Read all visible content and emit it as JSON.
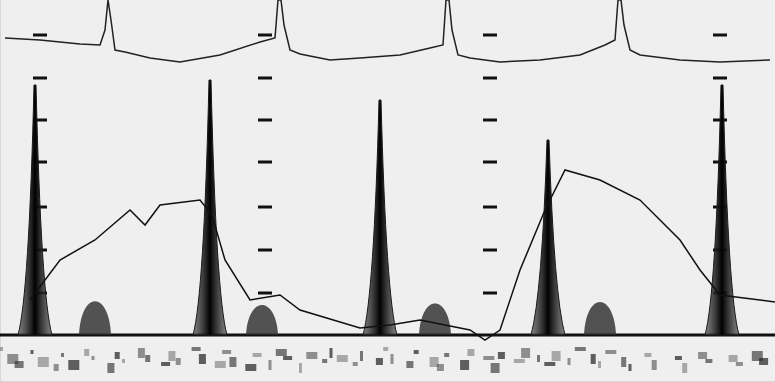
{
  "chart_data": {
    "type": "line",
    "tick_labels": false,
    "grid": true,
    "xlim": [
      0,
      775
    ],
    "ylim": [
      -47,
      335
    ],
    "xticks": [
      40,
      265,
      490,
      720
    ],
    "yticks": [
      0,
      42,
      85,
      128,
      173,
      215,
      257,
      300
    ],
    "series": [
      {
        "type": "spike",
        "color": "#1a1a1a",
        "x": [
          35,
          210,
          380,
          548,
          722
        ],
        "values": [
          250,
          255,
          235,
          195,
          250
        ]
      },
      {
        "type": "hump",
        "color": "#2a2a2a",
        "x": [
          95,
          262,
          435,
          600
        ],
        "values": [
          45,
          40,
          42,
          44
        ]
      },
      {
        "type": "line",
        "color": "#111111",
        "line_style": "solid",
        "x": [
          30,
          60,
          95,
          130,
          145,
          160,
          200,
          212,
          225,
          250,
          280,
          300,
          340,
          360,
          390,
          420,
          470,
          485,
          500,
          520,
          545,
          565,
          600,
          640,
          680,
          700,
          720,
          760,
          775
        ],
        "values": [
          35,
          75,
          95,
          125,
          110,
          130,
          135,
          120,
          75,
          35,
          40,
          25,
          13,
          7,
          10,
          15,
          5,
          -5,
          5,
          65,
          125,
          165,
          155,
          135,
          95,
          65,
          40,
          35,
          33
        ]
      },
      {
        "type": "line",
        "color": "#222222",
        "line_style": "solid",
        "x": [
          5,
          40,
          80,
          100,
          105,
          108,
          111,
          115,
          125,
          150,
          180,
          220,
          260,
          275,
          278,
          281,
          284,
          290,
          300,
          330,
          360,
          400,
          430,
          443,
          446,
          449,
          452,
          458,
          470,
          500,
          540,
          580,
          605,
          615,
          618,
          621,
          624,
          630,
          640,
          680,
          720,
          770
        ],
        "values": [
          297,
          295,
          291,
          290,
          305,
          335,
          315,
          285,
          283,
          277,
          273,
          280,
          293,
          297,
          335,
          335,
          310,
          285,
          281,
          275,
          277,
          280,
          287,
          290,
          335,
          335,
          305,
          280,
          277,
          273,
          275,
          280,
          290,
          295,
          335,
          335,
          310,
          285,
          280,
          275,
          273,
          275
        ]
      }
    ]
  }
}
